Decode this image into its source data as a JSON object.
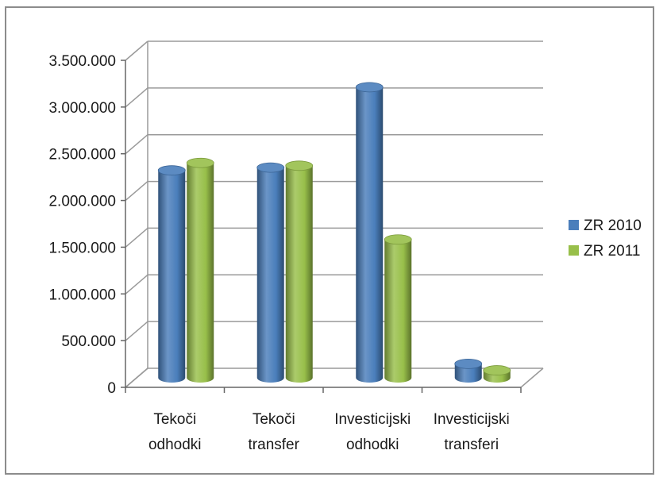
{
  "chart_data": {
    "type": "bar",
    "categories": [
      [
        "Tekoči",
        "odhodki"
      ],
      [
        "Tekoči",
        "transfer"
      ],
      [
        "Investicijski",
        "odhodki"
      ],
      [
        "Investicijski",
        "transferi"
      ]
    ],
    "series": [
      {
        "name": "ZR 2010",
        "color": "#4a7ebb",
        "values": [
          2220000,
          2250000,
          3110000,
          150000
        ]
      },
      {
        "name": "ZR 2011",
        "color": "#98bf4a",
        "values": [
          2300000,
          2270000,
          1480000,
          80000
        ]
      }
    ],
    "yticks": [
      "0",
      "500.000",
      "1.000.000",
      "1.500.000",
      "2.000.000",
      "2.500.000",
      "3.000.000",
      "3.500.000"
    ],
    "ylim": [
      0,
      3500000
    ],
    "grid": true,
    "legend_position": "right",
    "style": "3d-cylinder"
  }
}
